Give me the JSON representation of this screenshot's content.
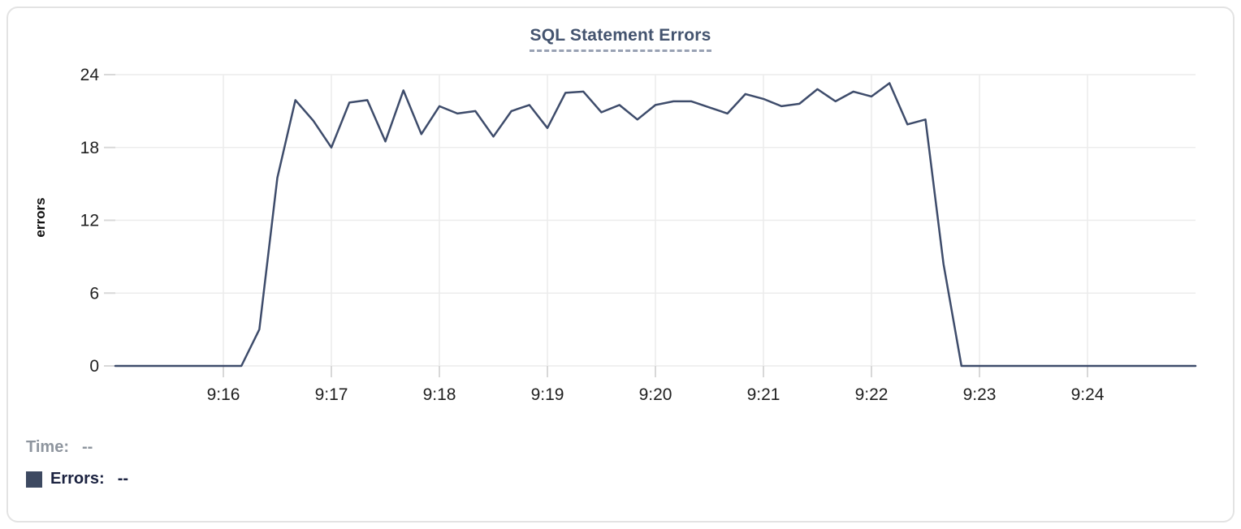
{
  "chart": {
    "title": "SQL Statement Errors",
    "y_axis_label": "errors"
  },
  "legend": {
    "time_label": "Time:",
    "time_value": "--",
    "errors_label": "Errors:",
    "errors_value": "--"
  },
  "colors": {
    "line": "#3E4C6B",
    "title": "#44546F",
    "title_underline": "#98A1B3",
    "swatch": "#3D4961",
    "errors_text": "#1B2240",
    "time_text": "#8E959E",
    "grid": "#ECECEC",
    "tick": "#D8D8D8",
    "axis_text": "#1F1F1F",
    "card_border": "#E3E3E3"
  },
  "chart_data": {
    "type": "line",
    "title": "SQL Statement Errors",
    "xlabel": "",
    "ylabel": "errors",
    "ylim": [
      0,
      24
    ],
    "y_ticks": [
      0,
      6,
      12,
      18,
      24
    ],
    "x_ticks": [
      "9:16",
      "9:17",
      "9:18",
      "9:19",
      "9:20",
      "9:21",
      "9:22",
      "9:23",
      "9:24"
    ],
    "x_range": [
      "9:15:00",
      "9:25:00"
    ],
    "grid": true,
    "legend_position": "bottom-left",
    "series": [
      {
        "name": "Errors",
        "x": [
          "9:15:00",
          "9:15:10",
          "9:15:20",
          "9:15:30",
          "9:15:40",
          "9:15:50",
          "9:16:00",
          "9:16:10",
          "9:16:20",
          "9:16:30",
          "9:16:40",
          "9:16:50",
          "9:17:00",
          "9:17:10",
          "9:17:20",
          "9:17:30",
          "9:17:40",
          "9:17:50",
          "9:18:00",
          "9:18:10",
          "9:18:20",
          "9:18:30",
          "9:18:40",
          "9:18:50",
          "9:19:00",
          "9:19:10",
          "9:19:20",
          "9:19:30",
          "9:19:40",
          "9:19:50",
          "9:20:00",
          "9:20:10",
          "9:20:20",
          "9:20:30",
          "9:20:40",
          "9:20:50",
          "9:21:00",
          "9:21:10",
          "9:21:20",
          "9:21:30",
          "9:21:40",
          "9:21:50",
          "9:22:00",
          "9:22:10",
          "9:22:20",
          "9:22:30",
          "9:22:40",
          "9:22:50",
          "9:23:00",
          "9:23:10",
          "9:23:20",
          "9:23:30",
          "9:23:40",
          "9:23:50",
          "9:24:00",
          "9:24:10",
          "9:24:20",
          "9:24:30",
          "9:24:40",
          "9:24:50",
          "9:25:00"
        ],
        "values": [
          0,
          0,
          0,
          0,
          0,
          0,
          0,
          0,
          3,
          15.5,
          21.9,
          20.2,
          18,
          21.7,
          21.9,
          18.5,
          22.7,
          19.1,
          21.4,
          20.8,
          21.0,
          18.9,
          21.0,
          21.5,
          19.6,
          22.5,
          22.6,
          20.9,
          21.5,
          20.3,
          21.5,
          21.8,
          21.8,
          21.3,
          20.8,
          22.4,
          22.0,
          21.4,
          21.6,
          22.8,
          21.8,
          22.6,
          22.2,
          23.3,
          19.9,
          20.3,
          8.4,
          0,
          0,
          0,
          0,
          0,
          0,
          0,
          0,
          0,
          0,
          0,
          0,
          0,
          0
        ]
      }
    ]
  }
}
